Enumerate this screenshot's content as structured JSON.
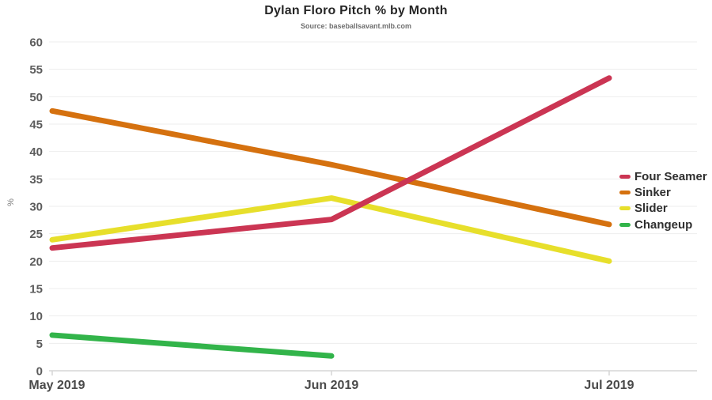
{
  "chart_data": {
    "type": "line",
    "title": "Dylan Floro Pitch % by Month",
    "subtitle": "Source: baseballsavant.mlb.com",
    "xlabel": "",
    "ylabel": "%",
    "categories": [
      "May 2019",
      "Jun 2019",
      "Jul 2019"
    ],
    "y_ticks": [
      0,
      5,
      10,
      15,
      20,
      25,
      30,
      35,
      40,
      45,
      50,
      55,
      60
    ],
    "ylim": [
      0,
      60
    ],
    "grid": true,
    "legend_position": "right",
    "series": [
      {
        "name": "Four Seamer",
        "color": "#cb3553",
        "values": [
          22.4,
          27.6,
          53.4
        ]
      },
      {
        "name": "Sinker",
        "color": "#d5710f",
        "values": [
          47.4,
          37.6,
          26.7
        ]
      },
      {
        "name": "Slider",
        "color": "#e7df2b",
        "values": [
          23.9,
          31.5,
          20.0
        ]
      },
      {
        "name": "Changeup",
        "color": "#32b44a",
        "values": [
          6.5,
          2.7,
          null
        ]
      }
    ],
    "colors": {
      "gridline": "#ededed",
      "axis_line": "#d6d6d6",
      "y_tick_text": "#5c5c5c",
      "x_tick_text": "#4a4a4a",
      "background": "#ffffff"
    }
  }
}
